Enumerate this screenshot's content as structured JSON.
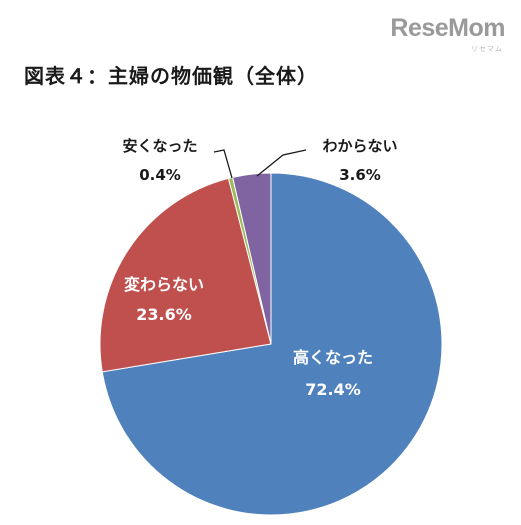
{
  "brand": {
    "logo_text": "ReseMom",
    "logo_sub": "リセマム"
  },
  "chart_data": {
    "type": "pie",
    "title": "図表４：主婦の物価観（全体）",
    "slices": [
      {
        "label": "高くなった",
        "value": 72.4,
        "value_label": "72.4%",
        "color": "#4f81bd"
      },
      {
        "label": "変わらない",
        "value": 23.6,
        "value_label": "23.6%",
        "color": "#c0504d"
      },
      {
        "label": "安くなった",
        "value": 0.4,
        "value_label": "0.4%",
        "color": "#9bbb59"
      },
      {
        "label": "わからない",
        "value": 3.6,
        "value_label": "3.6%",
        "color": "#8064a2"
      }
    ]
  }
}
